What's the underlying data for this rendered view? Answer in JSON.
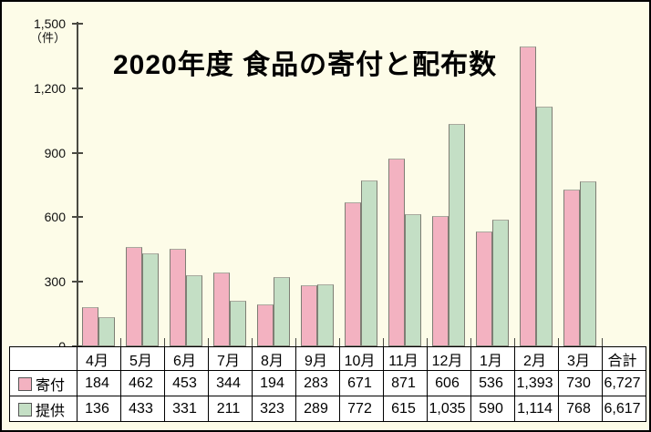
{
  "chart_data": {
    "type": "bar",
    "title": "2020年度 食品の寄付と配布数",
    "unit_label": "（件）",
    "categories": [
      "4月",
      "5月",
      "6月",
      "7月",
      "8月",
      "9月",
      "10月",
      "11月",
      "12月",
      "1月",
      "2月",
      "3月"
    ],
    "series": [
      {
        "name": "寄付",
        "name_en": "donation",
        "color": "#F3B2C1",
        "values": [
          184,
          462,
          453,
          344,
          194,
          283,
          671,
          871,
          606,
          536,
          1393,
          730
        ],
        "total": 6727
      },
      {
        "name": "提供",
        "name_en": "provision",
        "color": "#C4DFC5",
        "values": [
          136,
          433,
          331,
          211,
          323,
          289,
          772,
          615,
          1035,
          590,
          1114,
          768
        ],
        "total": 6617
      }
    ],
    "y_axis": {
      "min": 0,
      "max": 1500,
      "step": 300,
      "tick_labels": [
        "0",
        "300",
        "600",
        "900",
        "1,200",
        "1,500"
      ]
    },
    "grid": false,
    "legend_position": "table-row-headers",
    "table": {
      "corner_label": "",
      "total_label": "合計"
    },
    "colors": {
      "background": "#FDFCE8",
      "axis": "#4A4A42",
      "bar_border": "#7E7E74",
      "table_border": "#000000"
    }
  }
}
